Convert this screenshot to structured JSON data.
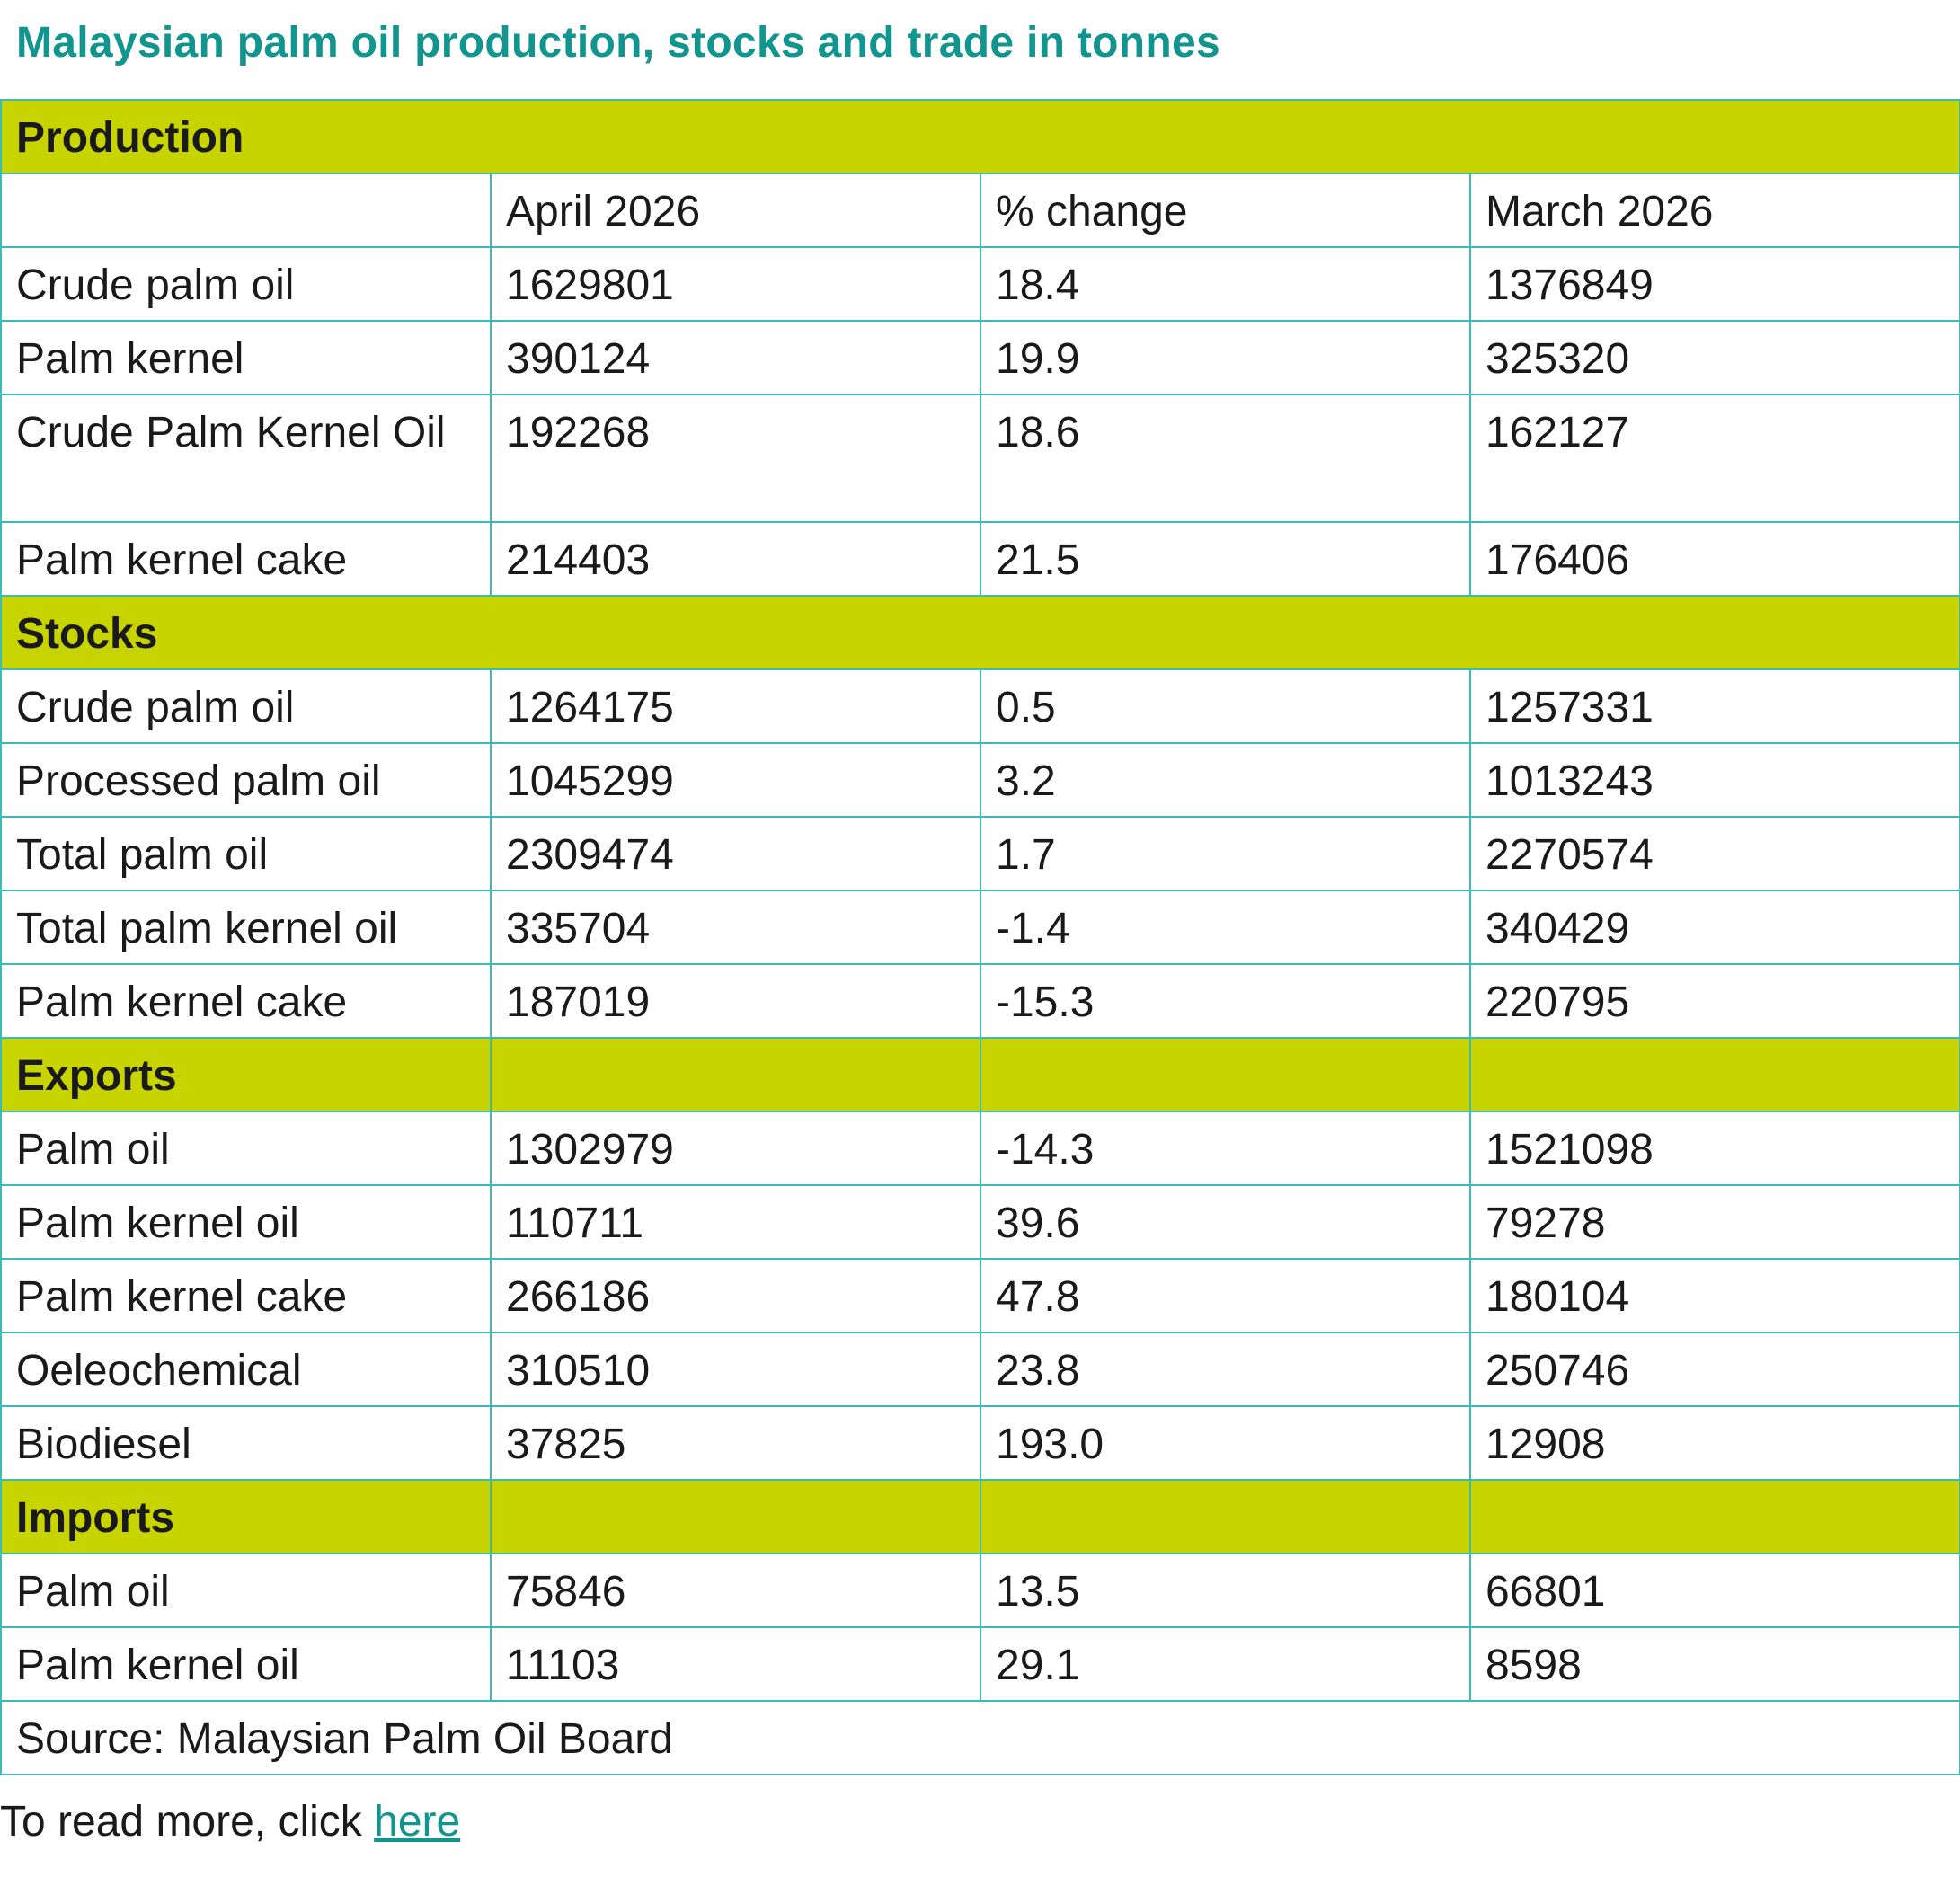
{
  "title": "Malaysian palm oil production, stocks and trade in tonnes",
  "header": {
    "col1": "April 2026",
    "col2": "% change",
    "col3": "March 2026"
  },
  "sections": {
    "production": {
      "label": "Production",
      "rows": [
        [
          "Crude palm oil",
          "1629801",
          "18.4",
          "1376849"
        ],
        [
          "Palm kernel",
          "390124",
          "19.9",
          "325320"
        ],
        [
          "Crude Palm Kernel Oil",
          "192268",
          "18.6",
          "162127"
        ],
        [
          "Palm kernel cake",
          "214403",
          "21.5",
          "176406"
        ]
      ]
    },
    "stocks": {
      "label": "Stocks",
      "rows": [
        [
          "Crude palm oil",
          "1264175",
          "0.5",
          "1257331"
        ],
        [
          "Processed palm oil",
          "1045299",
          "3.2",
          "1013243"
        ],
        [
          "Total palm oil",
          "2309474",
          "1.7",
          "2270574"
        ],
        [
          "Total palm kernel oil",
          "335704",
          "-1.4",
          "340429"
        ],
        [
          "Palm kernel cake",
          "187019",
          "-15.3",
          "220795"
        ]
      ]
    },
    "exports": {
      "label": "Exports",
      "rows": [
        [
          "Palm oil",
          "1302979",
          "-14.3",
          "1521098"
        ],
        [
          "Palm kernel oil",
          "110711",
          "39.6",
          "79278"
        ],
        [
          "Palm kernel cake",
          "266186",
          "47.8",
          "180104"
        ],
        [
          "Oeleochemical",
          "310510",
          "23.8",
          "250746"
        ],
        [
          "Biodiesel",
          "37825",
          "193.0",
          "12908"
        ]
      ]
    },
    "imports": {
      "label": "Imports",
      "rows": [
        [
          "Palm oil",
          "75846",
          "13.5",
          "66801"
        ],
        [
          "Palm kernel oil",
          "11103",
          "29.1",
          "8598"
        ]
      ]
    }
  },
  "source": "Source: Malaysian Palm Oil Board",
  "footer": {
    "prefix": "To read more, click ",
    "link_text": "here"
  },
  "colors": {
    "title": "#12958f",
    "section_bg": "#c8d400",
    "border": "#3cbab3"
  }
}
